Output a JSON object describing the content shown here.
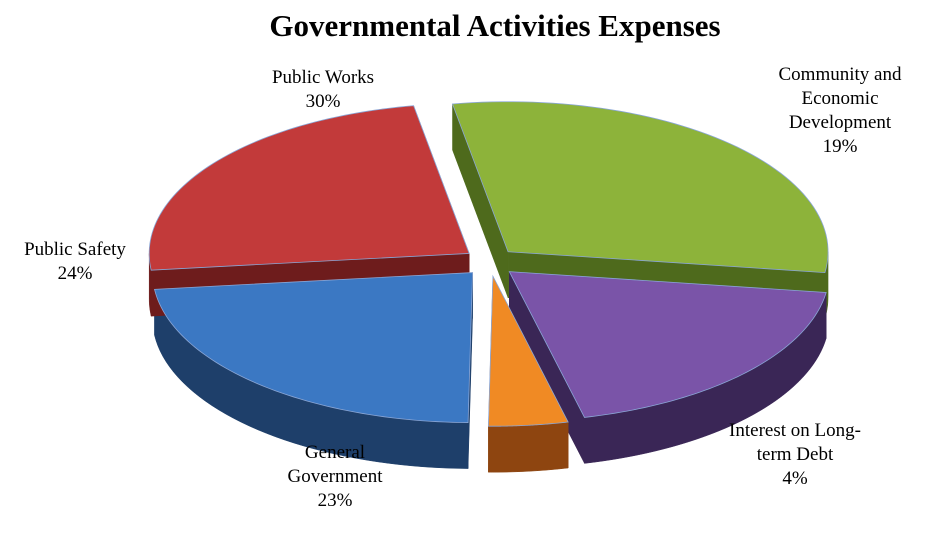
{
  "chart_data": {
    "type": "pie",
    "title": "Governmental Activities Expenses",
    "slices": [
      {
        "name": "Public Works",
        "value": 30,
        "value_label": "30%",
        "label_lines": [
          "Public Works"
        ],
        "color": "#8DB33A",
        "side_color": "#4E6A1C"
      },
      {
        "name": "Community and Economic Development",
        "value": 19,
        "value_label": "19%",
        "label_lines": [
          "Community and",
          "Economic",
          "Development"
        ],
        "color": "#7A54A8",
        "side_color": "#3A2656"
      },
      {
        "name": "Interest on Long-term Debt",
        "value": 4,
        "value_label": "4%",
        "label_lines": [
          "Interest on Long-",
          "term Debt"
        ],
        "color": "#F08A24",
        "side_color": "#8E4510"
      },
      {
        "name": "General Government",
        "value": 23,
        "value_label": "23%",
        "label_lines": [
          "General",
          "Government"
        ],
        "color": "#3B78C3",
        "side_color": "#1E3F6A"
      },
      {
        "name": "Public Safety",
        "value": 24,
        "value_label": "24%",
        "label_lines": [
          "Public Safety"
        ],
        "color": "#C23A3A",
        "side_color": "#6E1C1C"
      }
    ],
    "legend": "none"
  }
}
